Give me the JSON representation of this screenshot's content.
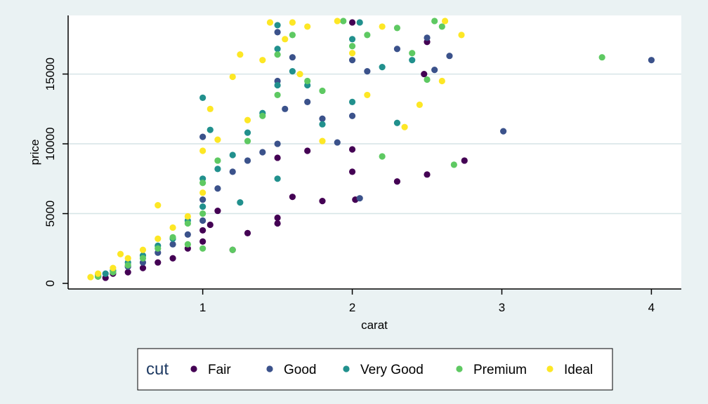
{
  "chart_data": {
    "type": "scatter",
    "title": "",
    "xlabel": "carat",
    "ylabel": "price",
    "xlim": [
      0.1,
      4.2
    ],
    "ylim": [
      -400,
      19200
    ],
    "x_ticks": [
      1,
      2,
      3,
      4
    ],
    "x_tick_labels": [
      "1",
      "2",
      "3",
      "4"
    ],
    "y_ticks": [
      0,
      5000,
      10000,
      15000
    ],
    "y_tick_labels": [
      "0",
      "5000",
      "10000",
      "15000"
    ],
    "grid": "horizontal",
    "legend": {
      "title": "cut",
      "placement": "bottom",
      "entries": [
        "Fair",
        "Good",
        "Very Good",
        "Premium",
        "Ideal"
      ]
    },
    "series": [
      {
        "name": "Fair",
        "color": "#440154",
        "points": [
          [
            0.3,
            500
          ],
          [
            0.4,
            700
          ],
          [
            0.5,
            800
          ],
          [
            0.6,
            1100
          ],
          [
            0.7,
            1500
          ],
          [
            0.8,
            1800
          ],
          [
            0.9,
            2500
          ],
          [
            1.0,
            3000
          ],
          [
            1.0,
            3800
          ],
          [
            1.05,
            4200
          ],
          [
            1.2,
            2400
          ],
          [
            1.3,
            3600
          ],
          [
            1.5,
            4300
          ],
          [
            1.5,
            4700
          ],
          [
            1.5,
            9000
          ],
          [
            1.6,
            6200
          ],
          [
            1.7,
            9500
          ],
          [
            1.8,
            5900
          ],
          [
            2.0,
            8000
          ],
          [
            2.0,
            9600
          ],
          [
            2.0,
            18700
          ],
          [
            2.02,
            6000
          ],
          [
            2.3,
            7300
          ],
          [
            2.5,
            7800
          ],
          [
            2.48,
            15000
          ],
          [
            2.5,
            17300
          ],
          [
            2.75,
            8800
          ],
          [
            1.1,
            5200
          ],
          [
            0.35,
            400
          ]
        ]
      },
      {
        "name": "Good",
        "color": "#3b528b",
        "points": [
          [
            0.3,
            600
          ],
          [
            0.4,
            900
          ],
          [
            0.5,
            1200
          ],
          [
            0.6,
            1500
          ],
          [
            0.7,
            2200
          ],
          [
            0.8,
            2800
          ],
          [
            0.9,
            3500
          ],
          [
            1.0,
            4500
          ],
          [
            1.0,
            6000
          ],
          [
            1.0,
            10500
          ],
          [
            1.1,
            6800
          ],
          [
            1.2,
            8000
          ],
          [
            1.3,
            8800
          ],
          [
            1.4,
            9400
          ],
          [
            1.5,
            10000
          ],
          [
            1.5,
            14500
          ],
          [
            1.55,
            12500
          ],
          [
            1.6,
            16200
          ],
          [
            1.7,
            13000
          ],
          [
            1.8,
            11800
          ],
          [
            1.9,
            10100
          ],
          [
            2.0,
            12000
          ],
          [
            2.0,
            16000
          ],
          [
            2.05,
            6100
          ],
          [
            2.1,
            15200
          ],
          [
            2.3,
            16800
          ],
          [
            2.5,
            17600
          ],
          [
            2.55,
            15300
          ],
          [
            2.65,
            16300
          ],
          [
            3.01,
            10900
          ],
          [
            4.0,
            16000
          ],
          [
            1.5,
            18000
          ]
        ]
      },
      {
        "name": "Very Good",
        "color": "#21908d",
        "points": [
          [
            0.3,
            500
          ],
          [
            0.35,
            700
          ],
          [
            0.4,
            900
          ],
          [
            0.5,
            1500
          ],
          [
            0.6,
            2000
          ],
          [
            0.7,
            2700
          ],
          [
            0.8,
            3200
          ],
          [
            0.9,
            4500
          ],
          [
            1.0,
            5500
          ],
          [
            1.0,
            7500
          ],
          [
            1.0,
            13300
          ],
          [
            1.05,
            11000
          ],
          [
            1.1,
            8200
          ],
          [
            1.2,
            9200
          ],
          [
            1.3,
            10800
          ],
          [
            1.4,
            12200
          ],
          [
            1.5,
            14200
          ],
          [
            1.5,
            16800
          ],
          [
            1.5,
            18500
          ],
          [
            1.6,
            15200
          ],
          [
            1.7,
            14200
          ],
          [
            1.8,
            11400
          ],
          [
            2.0,
            13000
          ],
          [
            2.0,
            17500
          ],
          [
            2.05,
            18700
          ],
          [
            2.2,
            15500
          ],
          [
            2.3,
            11500
          ],
          [
            2.4,
            16000
          ],
          [
            1.5,
            7500
          ],
          [
            1.25,
            5800
          ]
        ]
      },
      {
        "name": "Premium",
        "color": "#5ec962",
        "points": [
          [
            0.3,
            500
          ],
          [
            0.4,
            800
          ],
          [
            0.5,
            1300
          ],
          [
            0.6,
            1800
          ],
          [
            0.7,
            2500
          ],
          [
            0.8,
            3300
          ],
          [
            0.9,
            4300
          ],
          [
            1.0,
            5000
          ],
          [
            1.0,
            7200
          ],
          [
            1.1,
            8800
          ],
          [
            1.2,
            2400
          ],
          [
            1.3,
            10200
          ],
          [
            1.4,
            12000
          ],
          [
            1.5,
            13500
          ],
          [
            1.5,
            16400
          ],
          [
            1.6,
            17800
          ],
          [
            1.7,
            14500
          ],
          [
            1.8,
            13800
          ],
          [
            1.94,
            18800
          ],
          [
            2.0,
            17000
          ],
          [
            2.1,
            17800
          ],
          [
            2.2,
            9100
          ],
          [
            2.3,
            18300
          ],
          [
            2.4,
            16500
          ],
          [
            2.5,
            14600
          ],
          [
            2.55,
            18800
          ],
          [
            2.6,
            18400
          ],
          [
            2.68,
            8500
          ],
          [
            3.67,
            16200
          ],
          [
            0.9,
            2800
          ],
          [
            1.0,
            2500
          ]
        ]
      },
      {
        "name": "Ideal",
        "color": "#fde725",
        "points": [
          [
            0.25,
            450
          ],
          [
            0.3,
            700
          ],
          [
            0.4,
            1100
          ],
          [
            0.5,
            1800
          ],
          [
            0.6,
            2400
          ],
          [
            0.7,
            5600
          ],
          [
            0.8,
            4000
          ],
          [
            0.9,
            4800
          ],
          [
            1.0,
            6500
          ],
          [
            1.0,
            9500
          ],
          [
            1.05,
            12500
          ],
          [
            1.1,
            10300
          ],
          [
            1.2,
            14800
          ],
          [
            1.25,
            16400
          ],
          [
            1.3,
            11700
          ],
          [
            1.4,
            16000
          ],
          [
            1.45,
            18700
          ],
          [
            1.55,
            17500
          ],
          [
            1.6,
            18700
          ],
          [
            1.65,
            15000
          ],
          [
            1.7,
            18400
          ],
          [
            1.8,
            10200
          ],
          [
            1.9,
            18800
          ],
          [
            2.0,
            16500
          ],
          [
            2.1,
            13500
          ],
          [
            2.2,
            18400
          ],
          [
            2.35,
            11200
          ],
          [
            2.45,
            12800
          ],
          [
            2.6,
            14500
          ],
          [
            2.62,
            18800
          ],
          [
            2.73,
            17800
          ],
          [
            0.7,
            3200
          ],
          [
            0.45,
            2100
          ]
        ]
      }
    ]
  }
}
